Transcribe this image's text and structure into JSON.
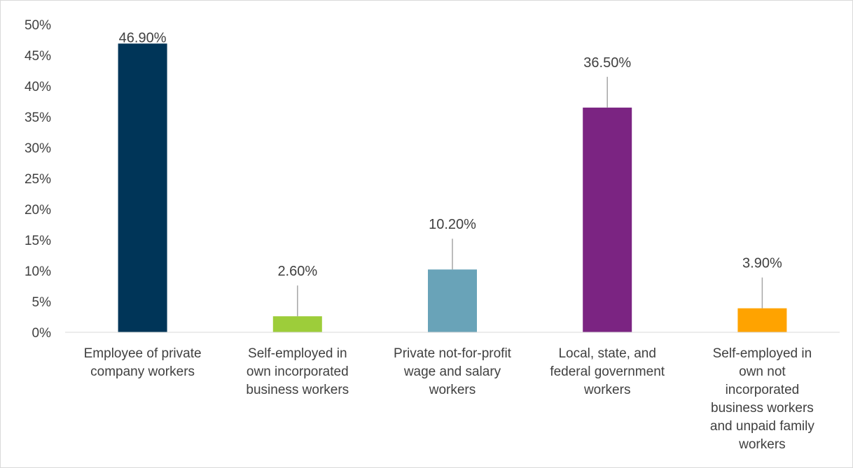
{
  "chart_data": {
    "type": "bar",
    "categories": [
      [
        "Employee of private",
        "company workers"
      ],
      [
        "Self-employed in",
        "own incorporated",
        "business workers"
      ],
      [
        "Private not-for-profit",
        "wage and salary",
        "workers"
      ],
      [
        "Local, state, and",
        "federal government",
        "workers"
      ],
      [
        "Self-employed in",
        "own not",
        "incorporated",
        "business workers",
        "and unpaid family",
        "workers"
      ]
    ],
    "values": [
      46.9,
      2.6,
      10.2,
      36.5,
      3.9
    ],
    "data_labels": [
      "46.90%",
      "2.60%",
      "10.20%",
      "36.50%",
      "3.90%"
    ],
    "colors": [
      "#003558",
      "#9dcd3a",
      "#69a3b8",
      "#7b2482",
      "#ffa300"
    ],
    "ylim": [
      0,
      50
    ],
    "yticks": [
      0,
      5,
      10,
      15,
      20,
      25,
      30,
      35,
      40,
      45,
      50
    ],
    "ytick_labels": [
      "0%",
      "5%",
      "10%",
      "15%",
      "20%",
      "25%",
      "30%",
      "35%",
      "40%",
      "45%",
      "50%"
    ],
    "grid": false,
    "legend": "none",
    "title": "",
    "xlabel": "",
    "ylabel": ""
  }
}
